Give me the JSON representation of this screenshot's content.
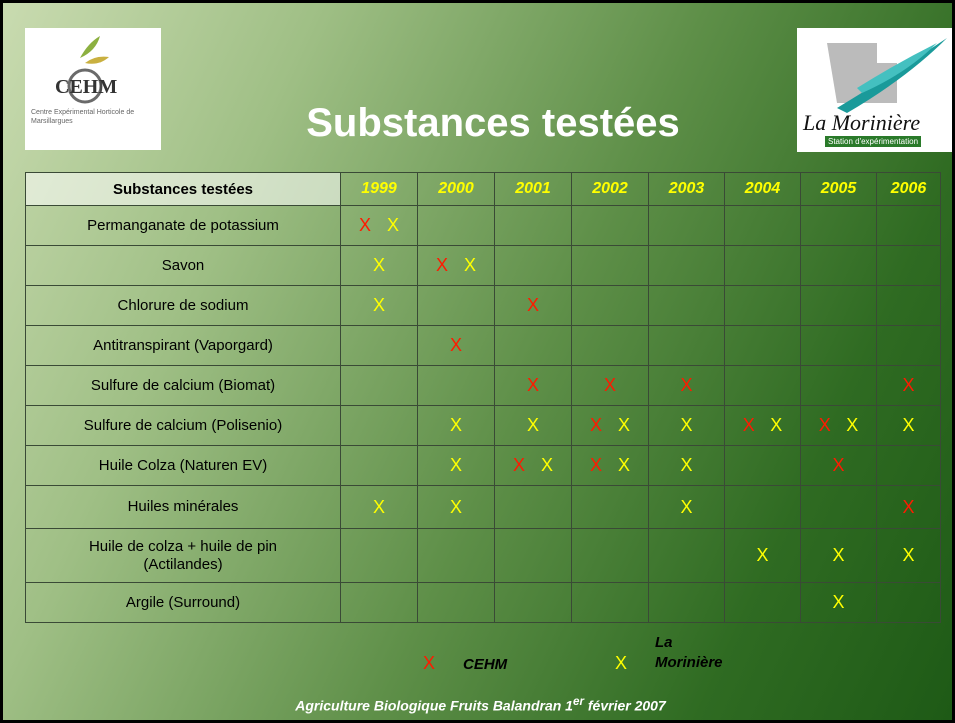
{
  "title": "Substances testées",
  "logos": {
    "left": {
      "name": "CEHM",
      "caption": "Centre Expérimental Horticole de Marsillargues"
    },
    "right": {
      "name": "La Morinière",
      "caption": "Station d'expérimentation"
    }
  },
  "table": {
    "header": [
      "Substances testées",
      "1999",
      "2000",
      "2001",
      "2002",
      "2003",
      "2004",
      "2005",
      "2006"
    ],
    "rows": [
      {
        "label": "Permanganate de potassium",
        "cells": [
          [
            {
              "text": "X",
              "color": "#ff1a00"
            },
            {
              "text": "X",
              "color": "#ffff00"
            }
          ],
          [],
          [],
          [],
          [],
          [],
          [],
          []
        ]
      },
      {
        "label": "Savon",
        "cells": [
          [
            {
              "text": "X",
              "color": "#ffff00"
            }
          ],
          [
            {
              "text": "X",
              "color": "#ff1a00"
            },
            {
              "text": "X",
              "color": "#ffff00"
            }
          ],
          [],
          [],
          [],
          [],
          [],
          []
        ]
      },
      {
        "label": "Chlorure de sodium",
        "cells": [
          [
            {
              "text": "X",
              "color": "#ffff00"
            }
          ],
          [],
          [
            {
              "text": "X",
              "color": "#ff1a00"
            }
          ],
          [],
          [],
          [],
          [],
          []
        ]
      },
      {
        "label": "Antitranspirant (Vaporgard)",
        "cells": [
          [],
          [
            {
              "text": "X",
              "color": "#ff1a00"
            }
          ],
          [],
          [],
          [],
          [],
          [],
          []
        ]
      },
      {
        "label": "Sulfure de calcium (Biomat)",
        "cells": [
          [],
          [],
          [
            {
              "text": "X",
              "color": "#ff1a00"
            }
          ],
          [
            {
              "text": "X",
              "color": "#ff1a00"
            }
          ],
          [
            {
              "text": "X",
              "color": "#ff1a00"
            }
          ],
          [],
          [],
          [
            {
              "text": "X",
              "color": "#ff1a00"
            }
          ]
        ]
      },
      {
        "label": "Sulfure de calcium (Polisenio)",
        "cells": [
          [],
          [
            {
              "text": "X",
              "color": "#ffff00"
            }
          ],
          [
            {
              "text": "X",
              "color": "#ffff00"
            }
          ],
          [
            {
              "text": "X",
              "color": "#ff1a00"
            },
            {
              "text": "X",
              "color": "#ffff00"
            }
          ],
          [
            {
              "text": "X",
              "color": "#ffff00"
            }
          ],
          [
            {
              "text": "X",
              "color": "#ff1a00"
            },
            {
              "text": "X",
              "color": "#ffff00"
            }
          ],
          [
            {
              "text": "X",
              "color": "#ff1a00"
            },
            {
              "text": "X",
              "color": "#ffff00"
            }
          ],
          [
            {
              "text": "X",
              "color": "#ffff00"
            }
          ]
        ]
      },
      {
        "label": "Huile Colza (Naturen EV)",
        "cells": [
          [],
          [
            {
              "text": "X",
              "color": "#ffff00"
            }
          ],
          [
            {
              "text": "X",
              "color": "#ff1a00"
            },
            {
              "text": "X",
              "color": "#ffff00"
            }
          ],
          [
            {
              "text": "X",
              "color": "#ff1a00"
            },
            {
              "text": "X",
              "color": "#ffff00"
            }
          ],
          [
            {
              "text": "X",
              "color": "#ffff00"
            }
          ],
          [],
          [
            {
              "text": "X",
              "color": "#ff1a00"
            }
          ],
          []
        ]
      },
      {
        "label": "Huiles minérales",
        "cells": [
          [
            {
              "text": "X",
              "color": "#ffff00"
            }
          ],
          [
            {
              "text": "X",
              "color": "#ffff00"
            }
          ],
          [],
          [],
          [
            {
              "text": "X",
              "color": "#ffff00"
            }
          ],
          [],
          [],
          [
            {
              "text": "X",
              "color": "#ff1a00"
            }
          ]
        ]
      },
      {
        "label": "Huile de colza + huile de pin\n(Actilandes)",
        "cells": [
          [],
          [],
          [],
          [],
          [],
          [
            {
              "text": "X",
              "color": "#ffff00"
            }
          ],
          [
            {
              "text": "X",
              "color": "#ffff00"
            }
          ],
          [
            {
              "text": "X",
              "color": "#ffff00"
            }
          ]
        ]
      },
      {
        "label": "Argile (Surround)",
        "cells": [
          [],
          [],
          [],
          [],
          [],
          [],
          [
            {
              "text": "X",
              "color": "#ffff00"
            }
          ],
          []
        ]
      }
    ]
  },
  "legend": [
    {
      "symbol": "X",
      "color": "#ff1a00",
      "label": "CEHM"
    },
    {
      "symbol": "X",
      "color": "#ffff00",
      "label": "La\nMorinière"
    }
  ],
  "footer": {
    "text": "Agriculture Biologique Fruits  Balandran 1",
    "sup": "er",
    "rest": " février 2007"
  }
}
